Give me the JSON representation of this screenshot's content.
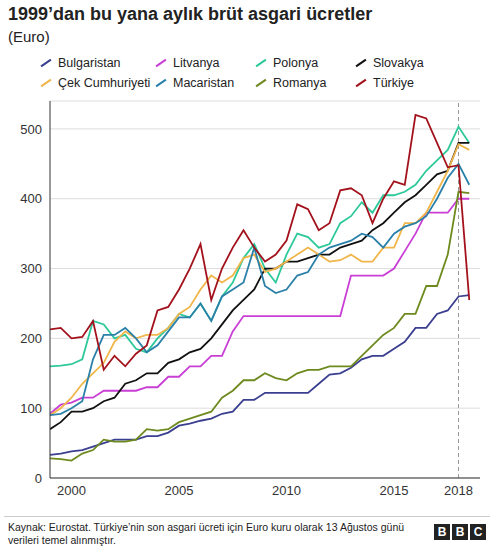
{
  "chart_data": {
    "type": "line",
    "title": "1999’dan bu yana aylık brüt asgari ücretler",
    "subtitle": "(Euro)",
    "source": "Kaynak: Eurostat. Türkiye’nin son asgari ücreti için Euro kuru olarak 13 Ağustos günü verileri temel alınmıştır.",
    "logo": "BBC",
    "x": [
      1999,
      1999.5,
      2000,
      2000.5,
      2001,
      2001.5,
      2002,
      2002.5,
      2003,
      2003.5,
      2004,
      2004.5,
      2005,
      2005.5,
      2006,
      2006.5,
      2007,
      2007.5,
      2008,
      2008.5,
      2009,
      2009.5,
      2010,
      2010.5,
      2011,
      2011.5,
      2012,
      2012.5,
      2013,
      2013.5,
      2014,
      2014.5,
      2015,
      2015.5,
      2016,
      2016.5,
      2017,
      2017.5,
      2018,
      2018.5
    ],
    "xlim": [
      1999,
      2019
    ],
    "xticks": [
      2000,
      2005,
      2010,
      2015,
      2018
    ],
    "ylim": [
      0,
      540
    ],
    "yticks": [
      0,
      100,
      200,
      300,
      400,
      500
    ],
    "grid": true,
    "reference_x": 2018,
    "series": [
      {
        "name": "Bulgaristan",
        "color": "#3a3f8f",
        "values": [
          33,
          35,
          38,
          40,
          45,
          50,
          55,
          55,
          55,
          60,
          60,
          65,
          75,
          78,
          82,
          85,
          92,
          95,
          112,
          112,
          122,
          122,
          122,
          122,
          122,
          135,
          148,
          150,
          158,
          170,
          175,
          175,
          185,
          195,
          215,
          215,
          235,
          240,
          260,
          262
        ]
      },
      {
        "name": "Litvanya",
        "color": "#c93fd6",
        "values": [
          92,
          105,
          108,
          115,
          115,
          125,
          125,
          125,
          125,
          130,
          130,
          145,
          145,
          160,
          160,
          175,
          175,
          210,
          232,
          232,
          232,
          232,
          232,
          232,
          232,
          232,
          232,
          232,
          290,
          290,
          290,
          290,
          300,
          325,
          350,
          380,
          380,
          380,
          400,
          400
        ]
      },
      {
        "name": "Polonya",
        "color": "#2ec99a",
        "values": [
          160,
          161,
          163,
          170,
          225,
          220,
          200,
          205,
          185,
          180,
          200,
          215,
          235,
          230,
          250,
          225,
          260,
          280,
          315,
          335,
          300,
          280,
          320,
          350,
          345,
          330,
          335,
          365,
          375,
          395,
          380,
          405,
          405,
          410,
          420,
          440,
          455,
          470,
          503,
          480
        ]
      },
      {
        "name": "Slovakya",
        "color": "#111111",
        "values": [
          70,
          80,
          95,
          95,
          100,
          110,
          115,
          135,
          140,
          150,
          150,
          165,
          170,
          180,
          185,
          200,
          220,
          240,
          255,
          270,
          300,
          300,
          310,
          310,
          315,
          320,
          320,
          330,
          335,
          340,
          355,
          365,
          380,
          395,
          405,
          420,
          435,
          440,
          480,
          480
        ]
      },
      {
        "name": "Çek Cumhuriyeti",
        "color": "#f0b64a",
        "values": [
          90,
          100,
          115,
          135,
          150,
          165,
          195,
          210,
          200,
          205,
          205,
          215,
          235,
          245,
          270,
          290,
          280,
          290,
          315,
          320,
          295,
          300,
          310,
          320,
          330,
          320,
          310,
          312,
          320,
          310,
          310,
          330,
          330,
          365,
          365,
          380,
          410,
          440,
          478,
          470
        ]
      },
      {
        "name": "Macaristan",
        "color": "#2a80a8",
        "values": [
          90,
          92,
          100,
          110,
          170,
          205,
          205,
          215,
          200,
          180,
          190,
          210,
          230,
          230,
          250,
          225,
          260,
          270,
          280,
          330,
          275,
          265,
          270,
          290,
          295,
          320,
          330,
          335,
          340,
          350,
          345,
          330,
          350,
          360,
          365,
          375,
          400,
          430,
          450,
          420
        ]
      },
      {
        "name": "Romanya",
        "color": "#6e8a1e",
        "values": [
          28,
          27,
          25,
          35,
          40,
          55,
          52,
          52,
          55,
          70,
          68,
          70,
          80,
          85,
          90,
          95,
          115,
          125,
          140,
          140,
          150,
          143,
          140,
          150,
          155,
          155,
          160,
          160,
          160,
          175,
          190,
          205,
          215,
          235,
          235,
          275,
          275,
          320,
          410,
          408
        ]
      },
      {
        "name": "Türkiye",
        "color": "#a3121c",
        "values": [
          213,
          215,
          200,
          202,
          225,
          155,
          175,
          160,
          178,
          190,
          240,
          245,
          270,
          300,
          335,
          255,
          300,
          330,
          355,
          330,
          310,
          320,
          340,
          392,
          385,
          355,
          365,
          412,
          415,
          405,
          365,
          400,
          425,
          420,
          520,
          515,
          480,
          445,
          448,
          255
        ]
      }
    ]
  }
}
